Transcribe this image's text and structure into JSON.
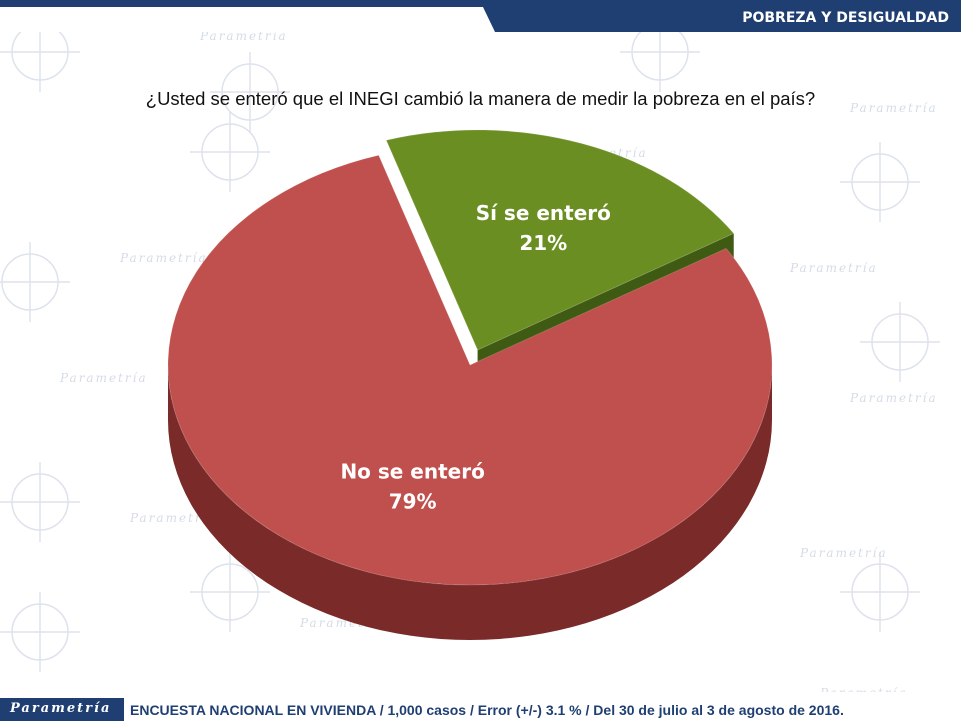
{
  "header": {
    "section_title": "POBREZA Y DESIGUALDAD"
  },
  "watermark": {
    "brand": "Parametría"
  },
  "question": "¿Usted se enteró que el INEGI cambió la manera de medir la pobreza en el país?",
  "chart_data": {
    "type": "pie",
    "style": "3d",
    "slices": [
      {
        "label": "No se enteró",
        "value": 79,
        "value_label": "79%",
        "color": "#c0504d",
        "side_color": "#7a2a28"
      },
      {
        "label": "Sí se enteró",
        "value": 21,
        "value_label": "21%",
        "color": "#6b8e23",
        "side_color": "#3f5a12"
      }
    ]
  },
  "footer": {
    "logo_text": "Parametría",
    "note": "ENCUESTA NACIONAL EN VIVIENDA / 1,000 casos / Error (+/-) 3.1 % / Del 30 de julio al 3 de agosto de 2016."
  }
}
